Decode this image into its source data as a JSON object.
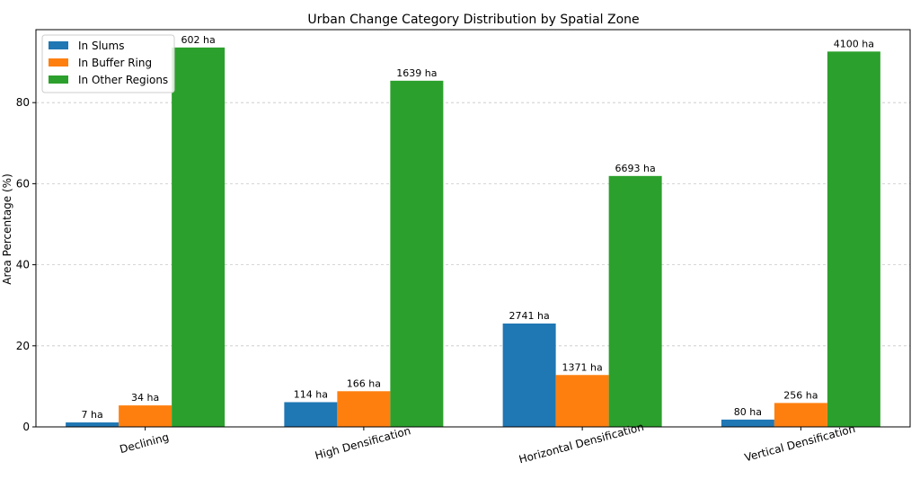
{
  "chart_data": {
    "type": "bar",
    "title": "Urban Change Category Distribution by Spatial Zone",
    "xlabel": "",
    "ylabel": "Area Percentage (%)",
    "ylim": [
      0,
      98
    ],
    "yticks": [
      0,
      20,
      40,
      60,
      80
    ],
    "grid": "y-dashed",
    "legend_position": "top-left",
    "categories": [
      "Declining",
      "High Densification",
      "Horizontal Densification",
      "Vertical Densification"
    ],
    "series": [
      {
        "name": "In Slums",
        "color": "#1f77b4",
        "values": [
          1.1,
          6.1,
          25.5,
          1.8
        ],
        "labels": [
          "7 ha",
          "114 ha",
          "2741 ha",
          "80 ha"
        ]
      },
      {
        "name": "In Buffer Ring",
        "color": "#ff7f0e",
        "values": [
          5.3,
          8.8,
          12.8,
          5.9
        ],
        "labels": [
          "34 ha",
          "166 ha",
          "1371 ha",
          "256 ha"
        ]
      },
      {
        "name": "In Other Regions",
        "color": "#2ca02c",
        "values": [
          93.6,
          85.4,
          61.9,
          92.6
        ],
        "labels": [
          "602 ha",
          "1639 ha",
          "6693 ha",
          "4100 ha"
        ]
      }
    ]
  }
}
